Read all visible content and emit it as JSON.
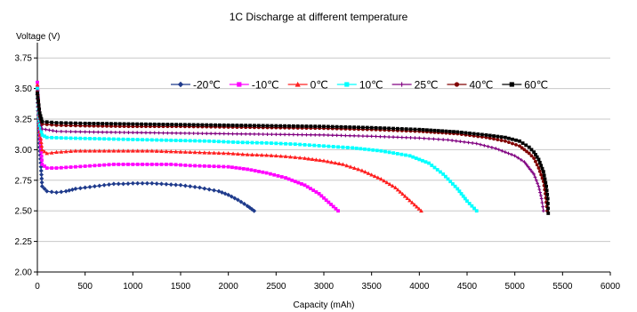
{
  "chart_data": {
    "type": "line",
    "title": "1C Discharge at different temperature",
    "xlabel": "Capacity (mAh)",
    "ylabel": "Voltage (V)",
    "xlim": [
      0,
      6000
    ],
    "ylim": [
      2.0,
      3.875
    ],
    "xticks": [
      0,
      500,
      1000,
      1500,
      2000,
      2500,
      3000,
      3500,
      4000,
      4500,
      5000,
      5500,
      6000
    ],
    "yticks": [
      2.0,
      2.25,
      2.5,
      2.75,
      3.0,
      3.25,
      3.5,
      3.75
    ],
    "ytick_labels": [
      "2.00",
      "2.25",
      "2.50",
      "2.75",
      "3.00",
      "3.25",
      "3.50",
      "3.75"
    ],
    "grid": "horizontal",
    "legend_position": "top-right",
    "series": [
      {
        "name": "-20℃",
        "color": "#1f3b8c",
        "marker": "diamond",
        "points": [
          [
            0,
            3.45
          ],
          [
            25,
            3.02
          ],
          [
            50,
            2.7
          ],
          [
            100,
            2.66
          ],
          [
            200,
            2.65
          ],
          [
            300,
            2.66
          ],
          [
            400,
            2.68
          ],
          [
            500,
            2.69
          ],
          [
            600,
            2.7
          ],
          [
            700,
            2.71
          ],
          [
            800,
            2.72
          ],
          [
            900,
            2.72
          ],
          [
            1000,
            2.725
          ],
          [
            1100,
            2.725
          ],
          [
            1200,
            2.725
          ],
          [
            1300,
            2.72
          ],
          [
            1400,
            2.715
          ],
          [
            1500,
            2.71
          ],
          [
            1600,
            2.7
          ],
          [
            1700,
            2.69
          ],
          [
            1800,
            2.675
          ],
          [
            1900,
            2.66
          ],
          [
            2000,
            2.63
          ],
          [
            2100,
            2.59
          ],
          [
            2200,
            2.54
          ],
          [
            2270,
            2.5
          ]
        ]
      },
      {
        "name": "-10℃",
        "color": "#ff00ff",
        "marker": "square",
        "points": [
          [
            0,
            3.55
          ],
          [
            25,
            3.15
          ],
          [
            50,
            2.88
          ],
          [
            100,
            2.85
          ],
          [
            200,
            2.85
          ],
          [
            400,
            2.86
          ],
          [
            600,
            2.87
          ],
          [
            800,
            2.88
          ],
          [
            1000,
            2.88
          ],
          [
            1200,
            2.88
          ],
          [
            1400,
            2.88
          ],
          [
            1600,
            2.87
          ],
          [
            1800,
            2.865
          ],
          [
            2000,
            2.86
          ],
          [
            2200,
            2.84
          ],
          [
            2400,
            2.81
          ],
          [
            2600,
            2.77
          ],
          [
            2800,
            2.71
          ],
          [
            2950,
            2.64
          ],
          [
            3050,
            2.57
          ],
          [
            3150,
            2.5
          ]
        ]
      },
      {
        "name": "0℃",
        "color": "#ff2020",
        "marker": "triangle",
        "points": [
          [
            0,
            3.53
          ],
          [
            25,
            3.15
          ],
          [
            50,
            3.0
          ],
          [
            100,
            2.97
          ],
          [
            200,
            2.98
          ],
          [
            400,
            2.99
          ],
          [
            600,
            2.99
          ],
          [
            800,
            2.99
          ],
          [
            1000,
            2.99
          ],
          [
            1200,
            2.99
          ],
          [
            1400,
            2.985
          ],
          [
            1600,
            2.98
          ],
          [
            1800,
            2.975
          ],
          [
            2000,
            2.97
          ],
          [
            2200,
            2.96
          ],
          [
            2400,
            2.955
          ],
          [
            2600,
            2.945
          ],
          [
            2800,
            2.93
          ],
          [
            3000,
            2.91
          ],
          [
            3200,
            2.88
          ],
          [
            3400,
            2.83
          ],
          [
            3600,
            2.76
          ],
          [
            3750,
            2.69
          ],
          [
            3850,
            2.62
          ],
          [
            3950,
            2.55
          ],
          [
            4020,
            2.5
          ]
        ]
      },
      {
        "name": "10℃",
        "color": "#00ffff",
        "marker": "square",
        "points": [
          [
            0,
            3.5
          ],
          [
            25,
            3.2
          ],
          [
            50,
            3.12
          ],
          [
            100,
            3.1
          ],
          [
            300,
            3.095
          ],
          [
            600,
            3.09
          ],
          [
            900,
            3.085
          ],
          [
            1200,
            3.08
          ],
          [
            1500,
            3.075
          ],
          [
            1800,
            3.07
          ],
          [
            2100,
            3.06
          ],
          [
            2400,
            3.055
          ],
          [
            2700,
            3.045
          ],
          [
            3000,
            3.03
          ],
          [
            3300,
            3.015
          ],
          [
            3600,
            2.99
          ],
          [
            3900,
            2.95
          ],
          [
            4100,
            2.89
          ],
          [
            4250,
            2.8
          ],
          [
            4400,
            2.68
          ],
          [
            4500,
            2.58
          ],
          [
            4600,
            2.5
          ]
        ]
      },
      {
        "name": "25℃",
        "color": "#800080",
        "marker": "plus",
        "points": [
          [
            0,
            3.48
          ],
          [
            25,
            3.25
          ],
          [
            50,
            3.17
          ],
          [
            200,
            3.15
          ],
          [
            500,
            3.145
          ],
          [
            1000,
            3.14
          ],
          [
            1500,
            3.135
          ],
          [
            2000,
            3.13
          ],
          [
            2500,
            3.125
          ],
          [
            3000,
            3.12
          ],
          [
            3500,
            3.11
          ],
          [
            4000,
            3.095
          ],
          [
            4300,
            3.08
          ],
          [
            4600,
            3.05
          ],
          [
            4800,
            3.01
          ],
          [
            5000,
            2.95
          ],
          [
            5100,
            2.9
          ],
          [
            5200,
            2.8
          ],
          [
            5250,
            2.7
          ],
          [
            5280,
            2.6
          ],
          [
            5300,
            2.5
          ]
        ]
      },
      {
        "name": "40℃",
        "color": "#800000",
        "marker": "circle",
        "points": [
          [
            0,
            3.47
          ],
          [
            25,
            3.27
          ],
          [
            50,
            3.21
          ],
          [
            200,
            3.2
          ],
          [
            500,
            3.195
          ],
          [
            1000,
            3.19
          ],
          [
            1500,
            3.19
          ],
          [
            2000,
            3.185
          ],
          [
            2500,
            3.18
          ],
          [
            3000,
            3.175
          ],
          [
            3500,
            3.165
          ],
          [
            4000,
            3.15
          ],
          [
            4400,
            3.13
          ],
          [
            4700,
            3.1
          ],
          [
            4900,
            3.07
          ],
          [
            5050,
            3.03
          ],
          [
            5150,
            2.97
          ],
          [
            5200,
            2.93
          ],
          [
            5250,
            2.85
          ],
          [
            5300,
            2.74
          ],
          [
            5320,
            2.64
          ],
          [
            5340,
            2.5
          ]
        ]
      },
      {
        "name": "60℃",
        "color": "#000000",
        "marker": "square",
        "points": [
          [
            0,
            3.46
          ],
          [
            25,
            3.3
          ],
          [
            50,
            3.23
          ],
          [
            200,
            3.22
          ],
          [
            500,
            3.215
          ],
          [
            1000,
            3.21
          ],
          [
            1500,
            3.205
          ],
          [
            2000,
            3.2
          ],
          [
            2500,
            3.195
          ],
          [
            3000,
            3.19
          ],
          [
            3500,
            3.18
          ],
          [
            4000,
            3.165
          ],
          [
            4400,
            3.145
          ],
          [
            4700,
            3.12
          ],
          [
            4900,
            3.1
          ],
          [
            5050,
            3.07
          ],
          [
            5150,
            3.02
          ],
          [
            5200,
            2.98
          ],
          [
            5250,
            2.92
          ],
          [
            5300,
            2.82
          ],
          [
            5330,
            2.7
          ],
          [
            5345,
            2.6
          ],
          [
            5350,
            2.48
          ]
        ]
      }
    ]
  }
}
